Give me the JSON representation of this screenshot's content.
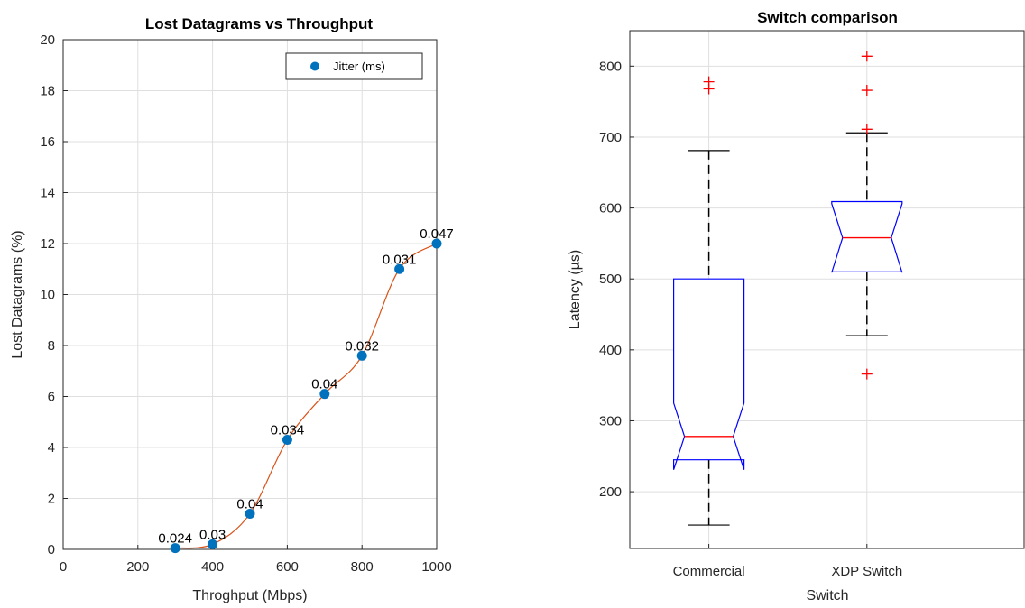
{
  "chart_data": [
    {
      "type": "scatter",
      "title": "Lost Datagrams vs Throughput",
      "xlabel": "Throghput (Mbps)",
      "ylabel": "Lost Datagrams (%)",
      "xlim": [
        0,
        1000
      ],
      "ylim": [
        0,
        20
      ],
      "xticks": [
        0,
        200,
        400,
        600,
        800,
        1000
      ],
      "yticks": [
        0,
        2,
        4,
        6,
        8,
        10,
        12,
        14,
        16,
        18,
        20
      ],
      "grid": true,
      "legend": {
        "position": "top-right",
        "entries": [
          "Jitter (ms)"
        ]
      },
      "series": [
        {
          "name": "Jitter (ms)",
          "x": [
            300,
            400,
            500,
            600,
            700,
            800,
            900,
            1000
          ],
          "y": [
            0.05,
            0.2,
            1.4,
            4.3,
            6.1,
            7.6,
            11.0,
            12.0
          ],
          "labels": [
            "0.024",
            "0.03",
            "0.04",
            "0.034",
            "0.04",
            "0.032",
            "0.031",
            "0.047"
          ]
        }
      ],
      "colors": {
        "marker": "#0072bd",
        "line": "#d95319"
      }
    },
    {
      "type": "box",
      "title": "Switch comparison",
      "xlabel": "Switch",
      "ylabel": "Latency (µs)",
      "ylim": [
        120,
        850
      ],
      "yticks": [
        200,
        300,
        400,
        500,
        600,
        700,
        800
      ],
      "grid": true,
      "categories": [
        "Commercial",
        "XDP Switch"
      ],
      "boxes": [
        {
          "category": "Commercial",
          "whisker_low": 153,
          "q1": 245,
          "median": 278,
          "q3": 500,
          "whisker_high": 681,
          "notch_low": 231,
          "notch_high": 325,
          "outliers": [
            768,
            778
          ]
        },
        {
          "category": "XDP Switch",
          "whisker_low": 420,
          "q1": 510,
          "median": 558,
          "q3": 609,
          "whisker_high": 706,
          "notch_low": 509,
          "notch_high": 606,
          "outliers": [
            366,
            711,
            766,
            814
          ]
        }
      ],
      "colors": {
        "box": "#0000ff",
        "median": "#ff0000",
        "whisker": "#000000",
        "outlier": "#ff0000"
      }
    }
  ]
}
